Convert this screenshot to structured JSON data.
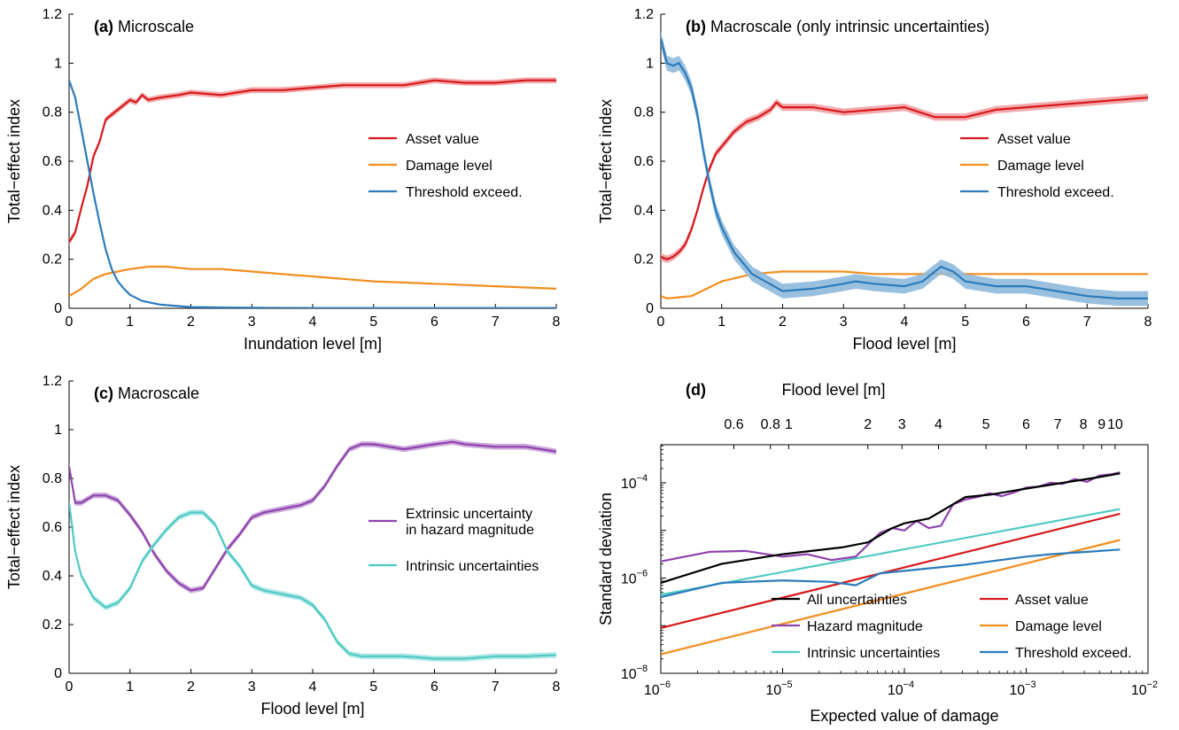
{
  "colors": {
    "asset": "#d7191c",
    "damage": "#f28e1e",
    "threshold": "#2b7bba",
    "hazard": "#8e44ad",
    "intrinsic": "#4fc9c4",
    "all": "#000000",
    "asset_band": "#f2a0a2",
    "threshold_band": "#8fb9dc",
    "hazard_band": "#c9a2d8",
    "intrinsic_band": "#a9e7e4"
  },
  "chart_data": [
    {
      "panel": "a",
      "type": "line",
      "title_letter": "(a)",
      "title": "Microscale",
      "xlabel": "Inundation level [m]",
      "ylabel": "Total−effect index",
      "xlim": [
        0,
        8
      ],
      "ylim": [
        0,
        1.2
      ],
      "xticks": [
        "0",
        "1",
        "2",
        "3",
        "4",
        "5",
        "6",
        "7",
        "8"
      ],
      "yticks": [
        "0",
        "0.2",
        "0.4",
        "0.6",
        "0.8",
        "1",
        "1.2"
      ],
      "legend_position": "center-right",
      "series": [
        {
          "name": "Asset value",
          "color_key": "asset",
          "band_key": "asset_band",
          "band": 0.012,
          "x": [
            0,
            0.1,
            0.2,
            0.3,
            0.4,
            0.5,
            0.6,
            0.7,
            0.8,
            0.9,
            1.0,
            1.1,
            1.2,
            1.3,
            1.5,
            1.8,
            2,
            2.5,
            3,
            3.5,
            4,
            4.5,
            5,
            5.5,
            6,
            6.5,
            7,
            7.5,
            8
          ],
          "y": [
            0.27,
            0.31,
            0.41,
            0.5,
            0.62,
            0.68,
            0.77,
            0.79,
            0.81,
            0.83,
            0.85,
            0.84,
            0.87,
            0.85,
            0.86,
            0.87,
            0.88,
            0.87,
            0.89,
            0.89,
            0.9,
            0.91,
            0.91,
            0.91,
            0.93,
            0.92,
            0.92,
            0.93,
            0.93
          ]
        },
        {
          "name": "Damage level",
          "color_key": "damage",
          "x": [
            0,
            0.2,
            0.4,
            0.6,
            0.8,
            1,
            1.3,
            1.6,
            2,
            2.5,
            3,
            3.5,
            4,
            4.5,
            5,
            5.5,
            6,
            6.5,
            7,
            7.5,
            8
          ],
          "y": [
            0.05,
            0.08,
            0.12,
            0.14,
            0.15,
            0.16,
            0.17,
            0.17,
            0.16,
            0.16,
            0.15,
            0.14,
            0.13,
            0.12,
            0.11,
            0.105,
            0.1,
            0.095,
            0.09,
            0.085,
            0.08
          ]
        },
        {
          "name": "Threshold exceed.",
          "color_key": "threshold",
          "x": [
            0,
            0.1,
            0.2,
            0.3,
            0.4,
            0.5,
            0.6,
            0.7,
            0.8,
            0.9,
            1.0,
            1.2,
            1.5,
            2,
            3,
            4,
            5,
            6,
            7,
            8
          ],
          "y": [
            0.93,
            0.86,
            0.73,
            0.6,
            0.47,
            0.35,
            0.24,
            0.16,
            0.11,
            0.08,
            0.055,
            0.03,
            0.015,
            0.005,
            0.002,
            0.001,
            0.001,
            0.001,
            0.001,
            0.001
          ]
        }
      ]
    },
    {
      "panel": "b",
      "type": "line",
      "title_letter": "(b)",
      "title": "Macroscale (only intrinsic uncertainties)",
      "xlabel": "Flood level [m]",
      "ylabel": "Total−effect index",
      "xlim": [
        0,
        8
      ],
      "ylim": [
        0,
        1.2
      ],
      "xticks": [
        "0",
        "1",
        "2",
        "3",
        "4",
        "5",
        "6",
        "7",
        "8"
      ],
      "yticks": [
        "0",
        "0.2",
        "0.4",
        "0.6",
        "0.8",
        "1",
        "1.2"
      ],
      "legend_position": "center-right",
      "series": [
        {
          "name": "Asset value",
          "color_key": "asset",
          "band_key": "asset_band",
          "band": 0.015,
          "x": [
            0,
            0.1,
            0.2,
            0.3,
            0.4,
            0.5,
            0.6,
            0.7,
            0.8,
            0.9,
            1.0,
            1.2,
            1.4,
            1.6,
            1.8,
            1.9,
            2.0,
            2.5,
            3,
            3.5,
            4,
            4.5,
            5,
            5.5,
            6,
            6.5,
            7,
            7.5,
            8
          ],
          "y": [
            0.21,
            0.2,
            0.21,
            0.23,
            0.26,
            0.32,
            0.4,
            0.49,
            0.57,
            0.63,
            0.66,
            0.72,
            0.76,
            0.78,
            0.81,
            0.84,
            0.82,
            0.82,
            0.8,
            0.81,
            0.82,
            0.78,
            0.78,
            0.81,
            0.82,
            0.83,
            0.84,
            0.85,
            0.86
          ]
        },
        {
          "name": "Damage level",
          "color_key": "damage",
          "x": [
            0,
            0.1,
            0.5,
            1,
            1.5,
            2,
            2.5,
            3,
            3.5,
            4,
            4.5,
            5,
            5.5,
            6,
            6.5,
            7,
            7.5,
            8
          ],
          "y": [
            0.05,
            0.04,
            0.05,
            0.11,
            0.14,
            0.15,
            0.15,
            0.15,
            0.14,
            0.14,
            0.14,
            0.14,
            0.14,
            0.14,
            0.14,
            0.14,
            0.14,
            0.14
          ]
        },
        {
          "name": "Threshold exceed.",
          "color_key": "threshold",
          "band_key": "threshold_band",
          "band": 0.03,
          "x": [
            0,
            0.1,
            0.2,
            0.3,
            0.4,
            0.5,
            0.6,
            0.7,
            0.8,
            0.9,
            1.0,
            1.2,
            1.5,
            2,
            2.5,
            3,
            3.2,
            3.5,
            4,
            4.3,
            4.6,
            4.8,
            5,
            5.5,
            6,
            6.5,
            7,
            7.5,
            8
          ],
          "y": [
            1.1,
            1.0,
            0.99,
            1.0,
            0.96,
            0.9,
            0.79,
            0.64,
            0.51,
            0.4,
            0.33,
            0.23,
            0.14,
            0.07,
            0.08,
            0.1,
            0.11,
            0.1,
            0.09,
            0.11,
            0.17,
            0.15,
            0.11,
            0.09,
            0.09,
            0.07,
            0.05,
            0.04,
            0.04
          ]
        }
      ]
    },
    {
      "panel": "c",
      "type": "line",
      "title_letter": "(c)",
      "title": "Macroscale",
      "xlabel": "Flood level [m]",
      "ylabel": "Total−effect index",
      "xlim": [
        0,
        8
      ],
      "ylim": [
        0,
        1.2
      ],
      "xticks": [
        "0",
        "1",
        "2",
        "3",
        "4",
        "5",
        "6",
        "7",
        "8"
      ],
      "yticks": [
        "0",
        "0.2",
        "0.4",
        "0.6",
        "0.8",
        "1",
        "1.2"
      ],
      "legend_position": "center-right",
      "series": [
        {
          "name": "Extrinsic uncertainty in hazard magnitude",
          "name_lines": [
            "Extrinsic uncertainty",
            "in hazard magnitude"
          ],
          "color_key": "hazard",
          "band_key": "hazard_band",
          "band": 0.012,
          "x": [
            0,
            0.1,
            0.2,
            0.4,
            0.6,
            0.8,
            1.0,
            1.2,
            1.4,
            1.6,
            1.8,
            2.0,
            2.2,
            2.4,
            2.6,
            2.8,
            3.0,
            3.2,
            3.4,
            3.6,
            3.8,
            4.0,
            4.2,
            4.4,
            4.6,
            4.8,
            5.0,
            5.5,
            6,
            6.3,
            6.5,
            7,
            7.5,
            8
          ],
          "y": [
            0.85,
            0.7,
            0.7,
            0.73,
            0.73,
            0.71,
            0.65,
            0.58,
            0.49,
            0.42,
            0.37,
            0.34,
            0.35,
            0.43,
            0.51,
            0.57,
            0.64,
            0.66,
            0.67,
            0.68,
            0.69,
            0.71,
            0.77,
            0.85,
            0.92,
            0.94,
            0.94,
            0.92,
            0.94,
            0.95,
            0.94,
            0.93,
            0.93,
            0.91
          ]
        },
        {
          "name": "Intrinsic uncertainties",
          "color_key": "intrinsic",
          "band_key": "intrinsic_band",
          "band": 0.012,
          "x": [
            0,
            0.1,
            0.2,
            0.4,
            0.6,
            0.8,
            1.0,
            1.2,
            1.4,
            1.6,
            1.8,
            2.0,
            2.2,
            2.4,
            2.6,
            2.8,
            3.0,
            3.2,
            3.4,
            3.6,
            3.8,
            4.0,
            4.2,
            4.4,
            4.6,
            4.8,
            5.0,
            5.5,
            6,
            6.5,
            7,
            7.5,
            8
          ],
          "y": [
            0.7,
            0.5,
            0.4,
            0.31,
            0.27,
            0.29,
            0.35,
            0.46,
            0.53,
            0.59,
            0.64,
            0.66,
            0.66,
            0.61,
            0.5,
            0.44,
            0.36,
            0.34,
            0.33,
            0.32,
            0.31,
            0.28,
            0.22,
            0.13,
            0.08,
            0.07,
            0.07,
            0.07,
            0.06,
            0.06,
            0.07,
            0.07,
            0.075
          ]
        }
      ]
    },
    {
      "panel": "d",
      "type": "line",
      "title_letter": "(d)",
      "title": "",
      "top_axis_label": "Flood level [m]",
      "top_ticks": [
        {
          "label": "0.6",
          "log10x": -5.4
        },
        {
          "label": "0.8",
          "log10x": -5.1
        },
        {
          "label": "1",
          "log10x": -4.95
        },
        {
          "label": "2",
          "log10x": -4.3
        },
        {
          "label": "3",
          "log10x": -4.02
        },
        {
          "label": "4",
          "log10x": -3.72
        },
        {
          "label": "5",
          "log10x": -3.33
        },
        {
          "label": "6",
          "log10x": -3.0
        },
        {
          "label": "7",
          "log10x": -2.74
        },
        {
          "label": "8",
          "log10x": -2.53
        },
        {
          "label": "9",
          "log10x": -2.38
        },
        {
          "label": "10",
          "log10x": -2.27
        }
      ],
      "xlabel": "Expected value of damage",
      "ylabel": "Standard deviation",
      "xscale": "log",
      "yscale": "log",
      "xlim_log10": [
        -6,
        -2
      ],
      "ylim_log10": [
        -8,
        -3.2
      ],
      "xticks_log10": [
        -6,
        -5,
        -4,
        -3,
        -2
      ],
      "yticks_log10": [
        -8,
        -6,
        -4
      ],
      "legend_position": "bottom-right",
      "series": [
        {
          "name": "All uncertainties",
          "color_key": "all",
          "log10x": [
            -6,
            -5.5,
            -5,
            -4.5,
            -4.3,
            -4.1,
            -4.0,
            -3.8,
            -3.7,
            -3.6,
            -3.5,
            -3.3,
            -3.0,
            -2.7,
            -2.4,
            -2.23
          ],
          "log10y": [
            -6.1,
            -5.7,
            -5.5,
            -5.35,
            -5.25,
            -4.95,
            -4.85,
            -4.75,
            -4.6,
            -4.45,
            -4.3,
            -4.25,
            -4.12,
            -4.0,
            -3.88,
            -3.8
          ]
        },
        {
          "name": "Hazard magnitude",
          "color_key": "hazard",
          "log10x": [
            -6,
            -5.6,
            -5.3,
            -5.0,
            -4.8,
            -4.6,
            -4.4,
            -4.2,
            -4.1,
            -4.0,
            -3.9,
            -3.8,
            -3.7,
            -3.6,
            -3.5,
            -3.4,
            -3.3,
            -3.2,
            -3.1,
            -3.0,
            -2.9,
            -2.8,
            -2.7,
            -2.6,
            -2.5,
            -2.4,
            -2.3,
            -2.23
          ],
          "log10y": [
            -5.65,
            -5.45,
            -5.43,
            -5.55,
            -5.5,
            -5.62,
            -5.55,
            -5.05,
            -4.95,
            -5.0,
            -4.8,
            -4.95,
            -4.9,
            -4.45,
            -4.35,
            -4.3,
            -4.22,
            -4.28,
            -4.2,
            -4.1,
            -4.08,
            -4.0,
            -4.02,
            -3.92,
            -3.98,
            -3.85,
            -3.82,
            -3.78
          ]
        },
        {
          "name": "Intrinsic uncertainties",
          "color_key": "intrinsic",
          "log10x": [
            -6,
            -2.23
          ],
          "log10y": [
            -6.35,
            -4.55
          ]
        },
        {
          "name": "Asset value",
          "color_key": "asset",
          "log10x": [
            -6,
            -2.23
          ],
          "log10y": [
            -7.05,
            -4.65
          ]
        },
        {
          "name": "Damage level",
          "color_key": "damage",
          "log10x": [
            -6,
            -2.23
          ],
          "log10y": [
            -7.6,
            -5.2
          ]
        },
        {
          "name": "Threshold exceed.",
          "color_key": "threshold",
          "log10x": [
            -6,
            -5.5,
            -5.0,
            -4.6,
            -4.4,
            -4.2,
            -4.0,
            -3.5,
            -3.0,
            -2.8,
            -2.5,
            -2.23
          ],
          "log10y": [
            -6.4,
            -6.1,
            -6.05,
            -6.08,
            -6.15,
            -5.9,
            -5.85,
            -5.72,
            -5.55,
            -5.5,
            -5.45,
            -5.4
          ]
        }
      ]
    }
  ]
}
